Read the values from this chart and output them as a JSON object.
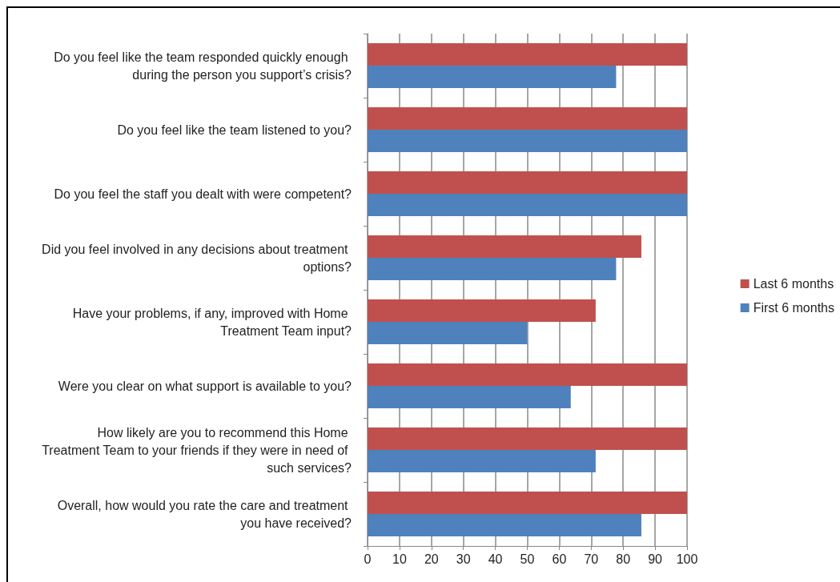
{
  "chart_data": {
    "type": "bar",
    "orientation": "horizontal",
    "categories": [
      "Do you feel like the team responded quickly enough during the person you support’s crisis?",
      "Do you feel like the team listened to you?",
      "Do you feel the staff you dealt with were competent?",
      "Did you feel involved in any decisions about treatment options?",
      "Have your problems, if any, improved with Home Treatment Team input?",
      "Were you clear on what support is available to you?",
      "How likely are you to recommend this Home Treatment Team to your friends if they were in need of such services?",
      "Overall, how would you rate the care and treatment you have received?"
    ],
    "series": [
      {
        "name": "Last 6 months",
        "color": "#c0504d",
        "values": [
          100,
          100,
          100,
          85.7,
          71.4,
          100,
          100,
          100
        ]
      },
      {
        "name": "First 6 months",
        "color": "#4f81bd",
        "values": [
          77.8,
          100,
          100,
          77.8,
          50,
          63.6,
          71.4,
          85.7
        ]
      }
    ],
    "xlim": [
      0,
      100
    ],
    "xticks": [
      0,
      10,
      20,
      30,
      40,
      50,
      60,
      70,
      80,
      90,
      100
    ],
    "grid": "x",
    "legend": "right"
  }
}
